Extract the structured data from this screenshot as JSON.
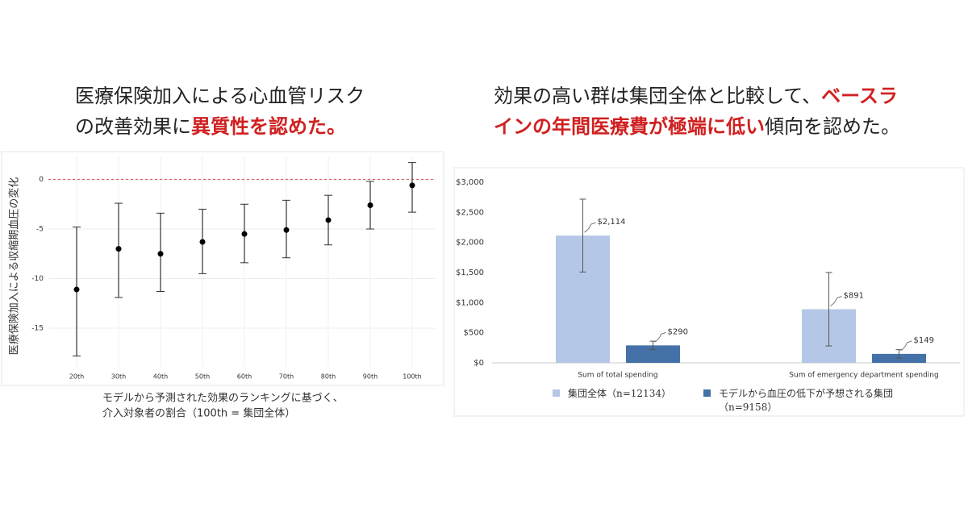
{
  "chart_data": [
    {
      "type": "errorpoint",
      "title_lines": [
        [
          {
            "text": "医療保険加入による心血管リスク"
          }
        ],
        [
          {
            "text": "の改善効果に"
          },
          {
            "text": "異質性を認めた。",
            "emphasis": true
          }
        ]
      ],
      "ylabel": "医療保険加入による収縮期血圧の変化",
      "xlabel_lines": [
        "モデルから予測された効果のランキングに基づく、",
        "介入対象者の割合（100th = 集団全体）"
      ],
      "categories": [
        "20th",
        "30th",
        "40th",
        "50th",
        "60th",
        "70th",
        "80th",
        "90th",
        "100th"
      ],
      "values": [
        -11.1,
        -7.0,
        -7.5,
        -6.3,
        -5.5,
        -5.1,
        -4.1,
        -2.6,
        -0.6
      ],
      "lower": [
        -17.8,
        -11.9,
        -11.3,
        -9.5,
        -8.4,
        -7.9,
        -6.6,
        -5.0,
        -3.3
      ],
      "upper": [
        -4.8,
        -2.4,
        -3.4,
        -3.0,
        -2.5,
        -2.1,
        -1.6,
        -0.2,
        1.7
      ],
      "color": "#000000",
      "hline": 0,
      "hline_color": "#e06060",
      "ylim": [
        -18.9,
        2.4
      ],
      "yticks": [
        0,
        -5,
        -10,
        -15
      ],
      "grid": true
    },
    {
      "type": "bar",
      "title_lines": [
        [
          {
            "text": "効果の高い群は集団全体と比較して、"
          },
          {
            "text": "ベースラ",
            "emphasis": true
          }
        ],
        [
          {
            "text": "インの年間医療費が極端に低い",
            "emphasis": true
          },
          {
            "text": "傾向を認めた。"
          }
        ]
      ],
      "categories": [
        "Sum of total spending",
        "Sum of emergency department spending"
      ],
      "series": [
        {
          "name": "集団全体（n=12134）",
          "color": "#b4c7e7",
          "values": [
            2114,
            891
          ],
          "value_labels": [
            "$2,114",
            "$891"
          ],
          "errors": [
            605,
            610
          ]
        },
        {
          "name": "モデルから血圧の低下が予想される集団（n=9158）",
          "color": "#4472a8",
          "values": [
            290,
            149
          ],
          "value_labels": [
            "$290",
            "$149"
          ],
          "errors": [
            70,
            70
          ]
        }
      ],
      "ylim": [
        0,
        3000
      ],
      "yticks": [
        {
          "value": 0,
          "label": "$0"
        },
        {
          "value": 500,
          "label": "$500"
        },
        {
          "value": 1000,
          "label": "$1,000"
        },
        {
          "value": 1500,
          "label": "$1,500"
        },
        {
          "value": 2000,
          "label": "$2,000"
        },
        {
          "value": 2500,
          "label": "$2,500"
        },
        {
          "value": 3000,
          "label": "$3,000"
        }
      ],
      "grid": false,
      "legend": "bottom"
    }
  ]
}
